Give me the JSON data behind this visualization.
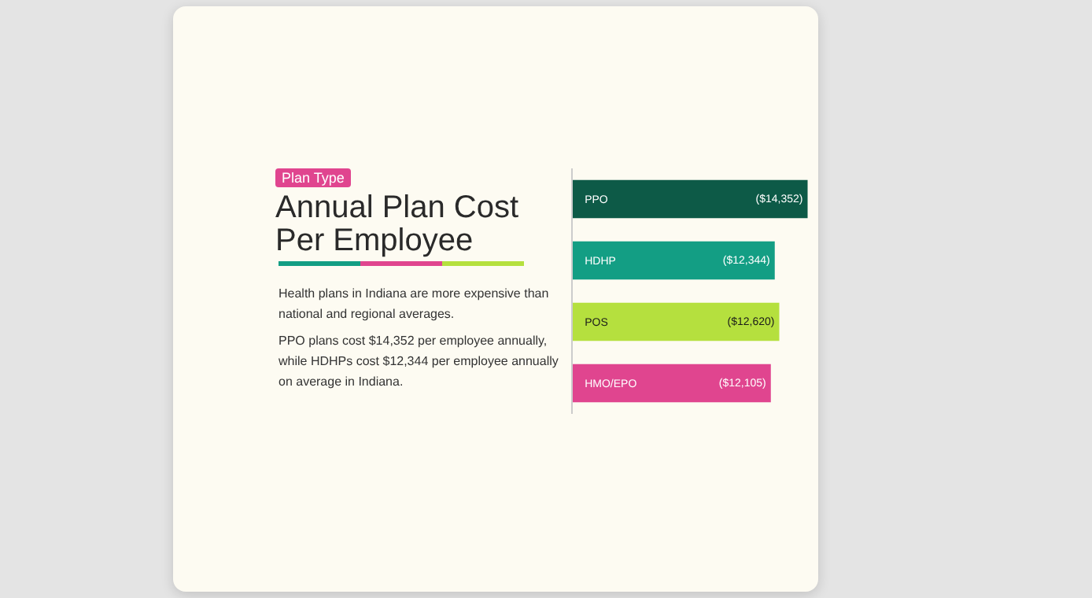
{
  "chart_data": {
    "type": "bar",
    "orientation": "horizontal",
    "title": "Annual Plan Cost Per Employee",
    "annotations": [
      "Plan Type",
      "Health plans in Indiana are more expensive than national and regional averages.",
      "PPO plans cost $14,352 per employee annually, while HDHPs cost $12,344 per employee annually on average in Indiana."
    ],
    "categories": [
      "PPO",
      "HDHP",
      "POS",
      "HMO/EPO"
    ],
    "values": [
      14352,
      12344,
      12620,
      12105
    ],
    "value_labels": [
      "($14,352)",
      "($12,344)",
      "($12,620)",
      "($12,105)"
    ],
    "colors": [
      "#0d5a47",
      "#139e84",
      "#b5e03e",
      "#e0458f"
    ],
    "xlim": [
      0,
      15000
    ],
    "tick_labels": "y"
  }
}
